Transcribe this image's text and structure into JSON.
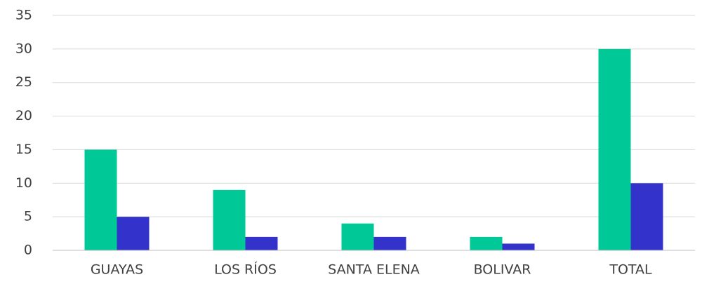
{
  "chart_data": {
    "type": "bar",
    "categories": [
      "GUAYAS",
      "LOS RÍOS",
      "SANTA ELENA",
      "BOLIVAR",
      "TOTAL"
    ],
    "series": [
      {
        "color": "#00c896",
        "values": [
          15,
          9,
          4,
          2,
          30
        ]
      },
      {
        "color": "#3333cc",
        "values": [
          5,
          2,
          2,
          1,
          10
        ]
      }
    ],
    "ylim": [
      0,
      35
    ],
    "yticks": [
      0,
      5,
      10,
      15,
      20,
      25,
      30,
      35
    ],
    "grid": true
  }
}
